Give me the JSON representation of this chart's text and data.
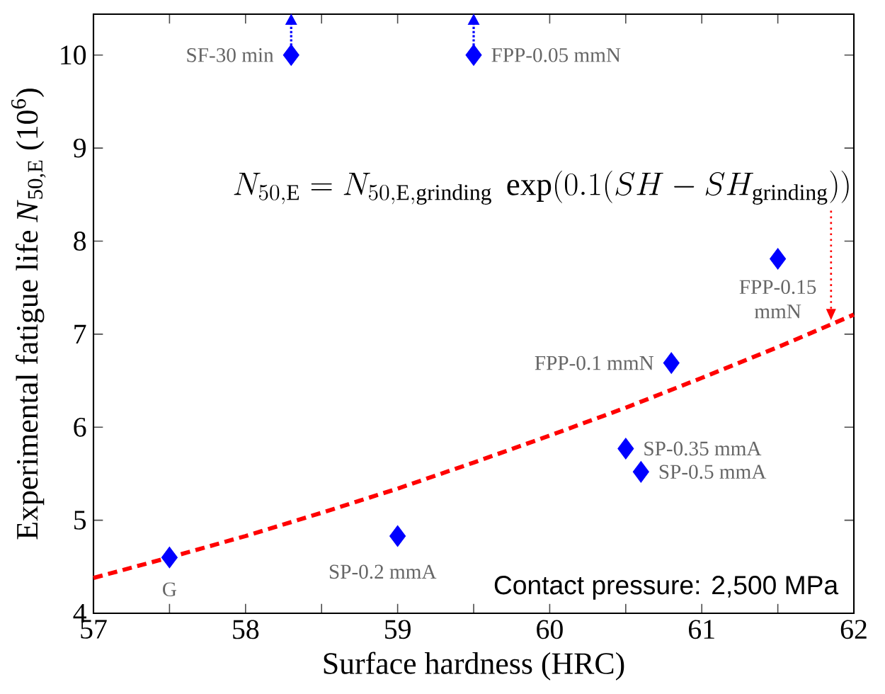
{
  "chart_data": {
    "type": "scatter",
    "xlabel": "Surface hardness (HRC)",
    "ylabel": "Experimental fatigue life *N*$_{50,E}$ (10$^{6}$)",
    "xlim": [
      57,
      62
    ],
    "xticks": [
      57,
      58,
      59,
      60,
      61,
      62
    ],
    "ylim": [
      4,
      10.44
    ],
    "yticks": [
      4,
      5,
      6,
      7,
      8,
      9,
      10
    ],
    "marker": "diamond",
    "grid": false,
    "series": [
      {
        "color": "#0000ff",
        "x": [
          57.5,
          59.0,
          60.5,
          60.6,
          60.8,
          61.5,
          58.3,
          59.5
        ],
        "values": [
          4.6,
          4.83,
          5.77,
          5.52,
          6.69,
          7.81,
          10.0,
          10.0
        ]
      },
      {
        "type": "line",
        "marker": "none",
        "color": "#ff0000",
        "line_style": "dashed",
        "x": [
          57,
          57.5,
          58,
          58.5,
          59,
          59.5,
          60,
          60.5,
          61,
          61.5,
          62
        ],
        "values": [
          4.38,
          4.6,
          4.83,
          5.08,
          5.34,
          5.62,
          5.91,
          6.21,
          6.53,
          6.86,
          7.21
        ]
      }
    ],
    "annotations": [
      {
        "text": "G",
        "x": 57.5,
        "y": 4.6
      },
      {
        "text": "SP-0.2 mmA",
        "x": 59.0,
        "y": 4.83
      },
      {
        "text": "SP-0.35 mmA",
        "x": 60.5,
        "y": 5.77
      },
      {
        "text": "SP-0.5 mmA",
        "x": 60.6,
        "y": 5.52
      },
      {
        "text": "FPP-0.1 mmN",
        "x": 60.8,
        "y": 6.69
      },
      {
        "text": "FPP-0.15 mmN",
        "x": 61.5,
        "y": 7.81
      },
      {
        "text": "SF-30 min",
        "x": 58.3,
        "y": 10.0
      },
      {
        "text": "FPP-0.05 mmN",
        "x": 59.5,
        "y": 10.0
      },
      {
        "text": "N_{50,\\mathrm{E}}=N_{50,\\mathrm{E,grinding}}\\ \\exp(0.1(SH-SH_{\\mathrm{grinding}}))",
        "x": 61.85,
        "y": 7.15
      },
      "Contact pressure: 2,500 MPa"
    ]
  }
}
